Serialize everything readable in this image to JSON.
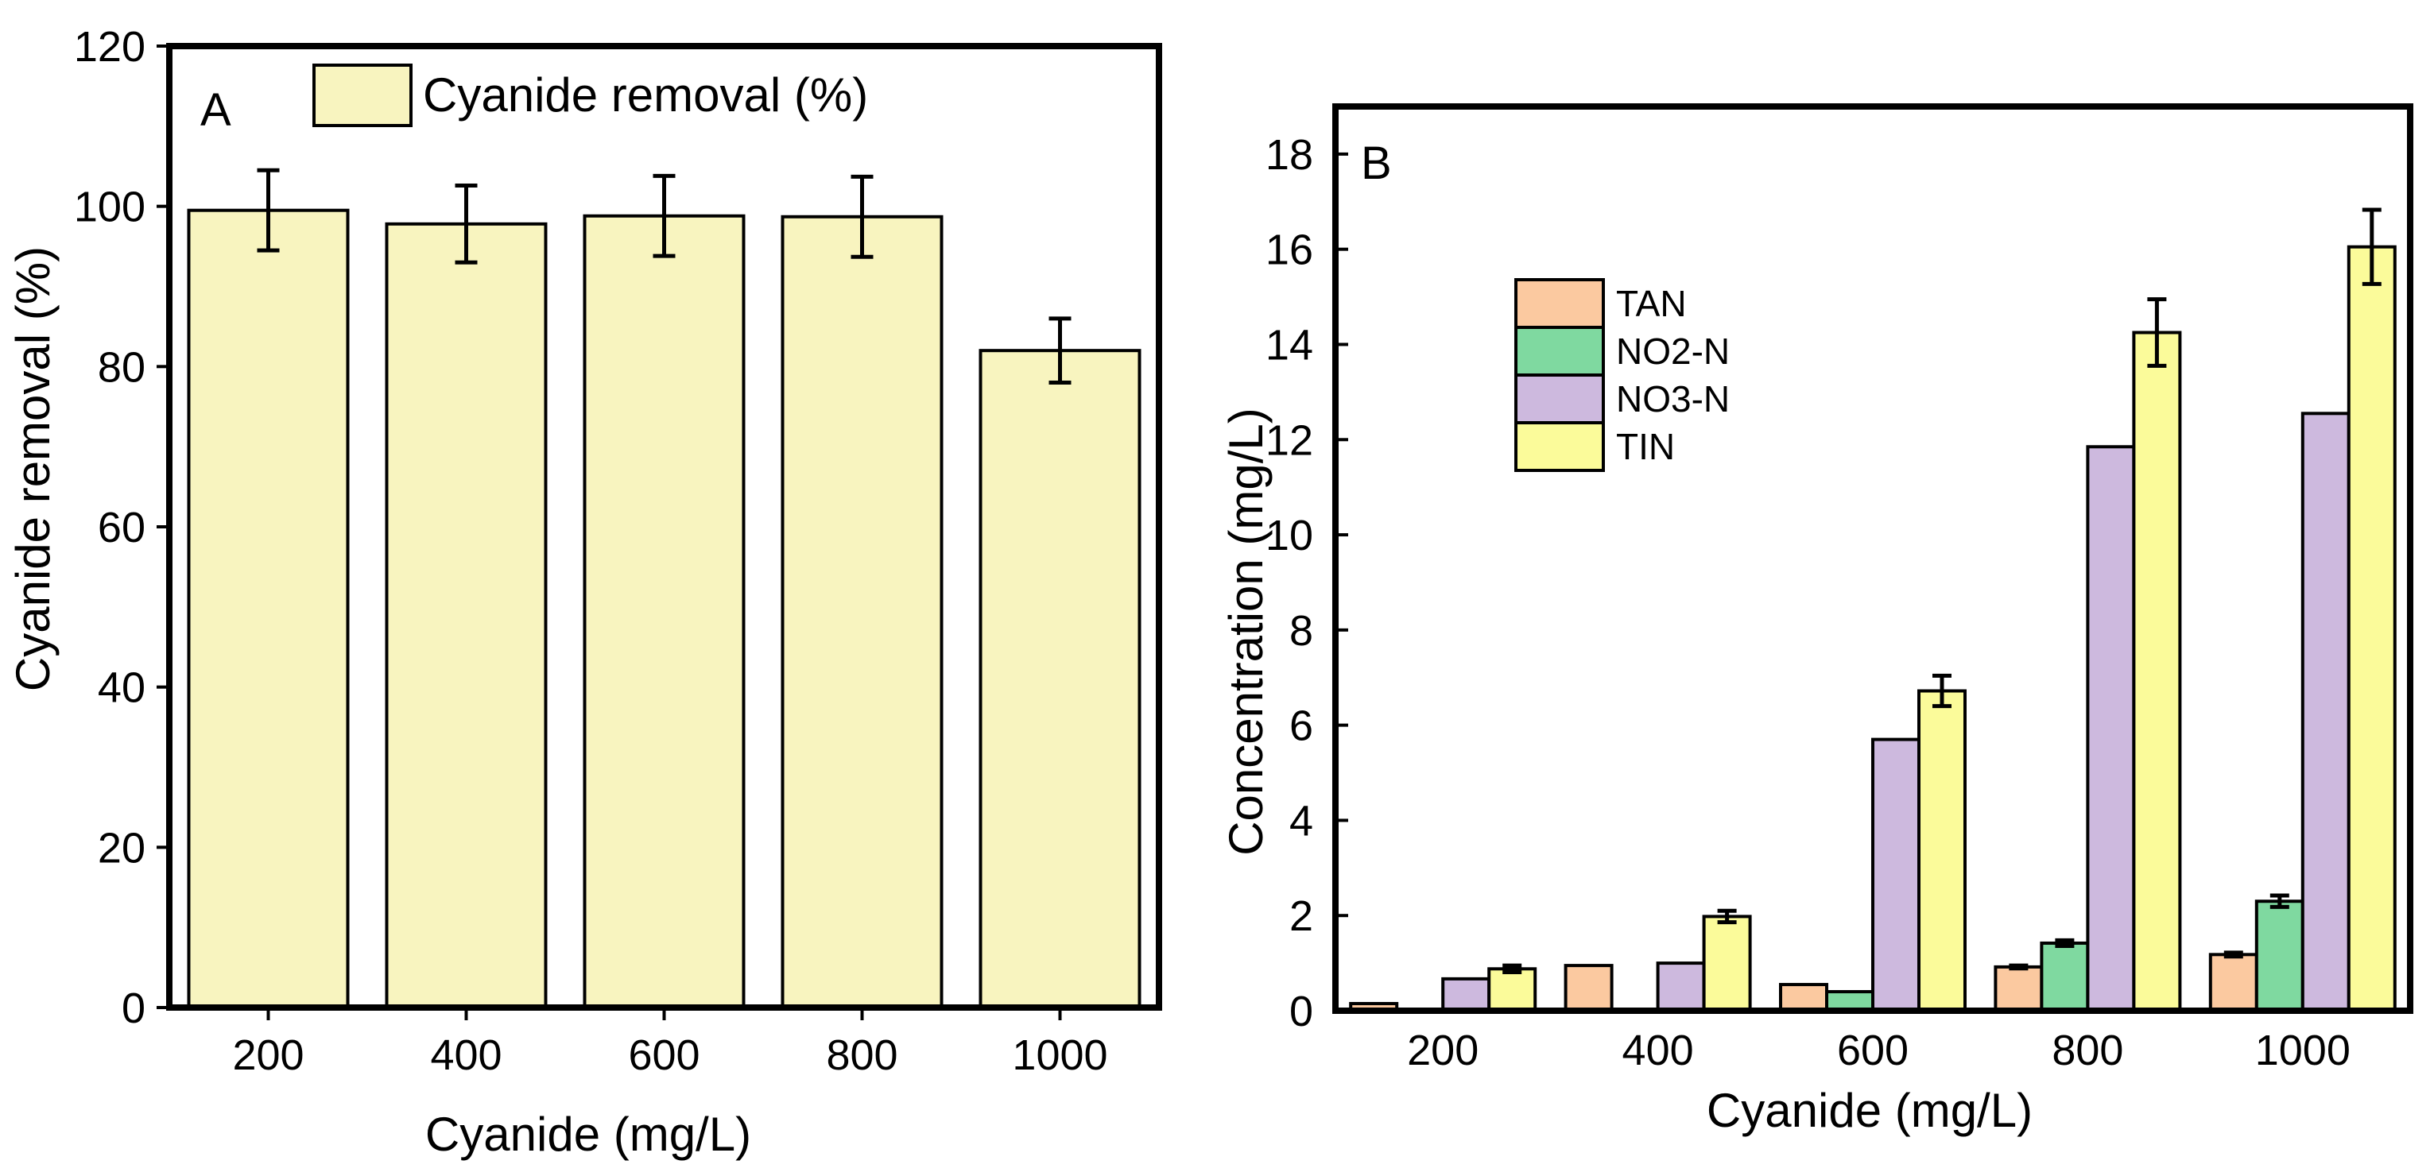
{
  "chart_data": [
    {
      "type": "bar",
      "panel_label": "A",
      "xlabel": "Cyanide (mg/L)",
      "ylabel": "Cyanide removal (%)",
      "ylim": [
        0,
        120
      ],
      "yticks": [
        0,
        20,
        40,
        60,
        80,
        100,
        120
      ],
      "categories": [
        "200",
        "400",
        "600",
        "800",
        "1000"
      ],
      "series": [
        {
          "name": "Cyanide removal (%)",
          "color": "#f8f4bf",
          "values": [
            99.5,
            97.8,
            98.8,
            98.7,
            82.0
          ],
          "errors": [
            5.0,
            4.8,
            5.0,
            5.0,
            4.0
          ]
        }
      ],
      "legend_position": "top"
    },
    {
      "type": "bar",
      "panel_label": "B",
      "xlabel": "Cyanide (mg/L)",
      "ylabel": "Concentration  (mg/L)",
      "ylim": [
        0,
        19
      ],
      "yticks": [
        0,
        2,
        4,
        6,
        8,
        10,
        12,
        14,
        16,
        18
      ],
      "categories": [
        "200",
        "400",
        "600",
        "800",
        "1000"
      ],
      "series": [
        {
          "name": "TAN",
          "color": "#fbc9a0",
          "values": [
            0.15,
            0.95,
            0.55,
            0.92,
            1.18
          ],
          "errors": [
            0,
            0,
            0,
            0.03,
            0.04
          ]
        },
        {
          "name": "NO2-N",
          "color": "#7fd9a0",
          "values": [
            0,
            0,
            0.4,
            1.42,
            2.3
          ],
          "errors": [
            0,
            0,
            0,
            0.06,
            0.12
          ]
        },
        {
          "name": "NO3-N",
          "color": "#cdb9de",
          "values": [
            0.67,
            1.0,
            5.7,
            11.85,
            12.55
          ],
          "errors": [
            0,
            0,
            0,
            0,
            0
          ]
        },
        {
          "name": "TIN",
          "color": "#fbfb9a",
          "values": [
            0.88,
            1.98,
            6.72,
            14.25,
            16.05
          ],
          "errors": [
            0.07,
            0.12,
            0.32,
            0.7,
            0.78
          ]
        }
      ],
      "legend_position": "upper-left"
    }
  ]
}
